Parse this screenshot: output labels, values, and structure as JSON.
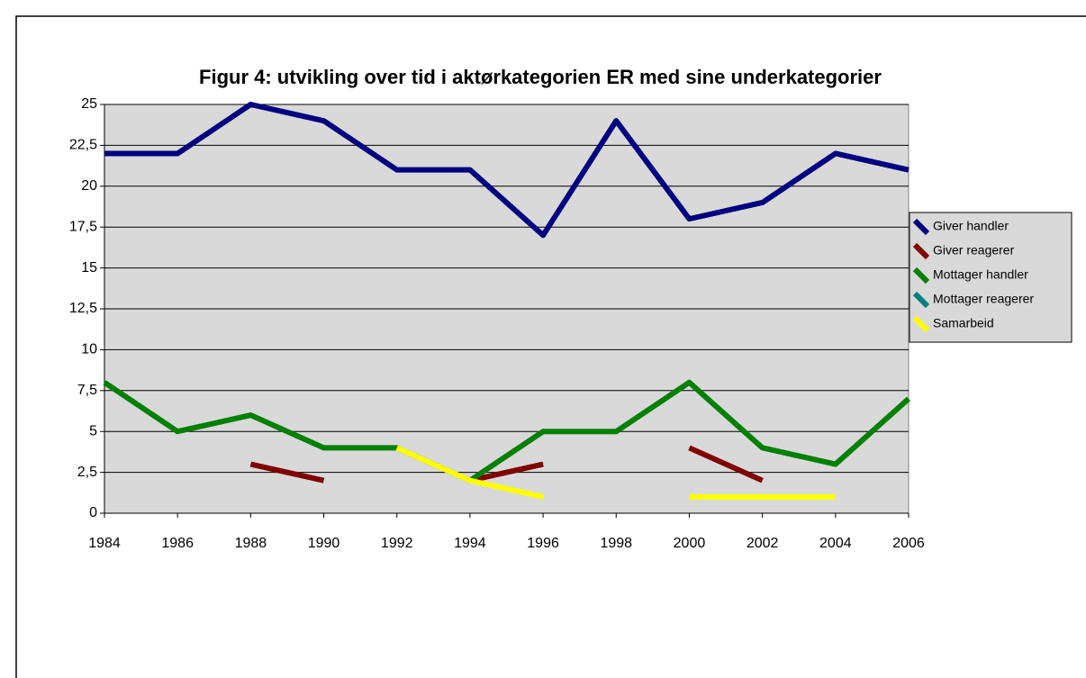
{
  "chart_data": {
    "type": "line",
    "title": "Figur 4: utvikling over tid i aktørkategorien ER med sine underkategorier",
    "categories": [
      "1984",
      "1986",
      "1988",
      "1990",
      "1992",
      "1994",
      "1996",
      "1998",
      "2000",
      "2002",
      "2004",
      "2006"
    ],
    "series": [
      {
        "name": "Giver handler",
        "color": "#000080",
        "values": [
          22,
          22,
          25,
          24,
          21,
          21,
          17,
          24,
          18,
          19,
          22,
          21
        ]
      },
      {
        "name": "Giver reagerer",
        "color": "#800000",
        "values": [
          null,
          null,
          3,
          2,
          null,
          2,
          3,
          null,
          4,
          2,
          null,
          null
        ]
      },
      {
        "name": "Mottager handler",
        "color": "#008000",
        "values": [
          8,
          5,
          6,
          4,
          4,
          2,
          5,
          5,
          8,
          4,
          3,
          7
        ]
      },
      {
        "name": "Mottager reagerer",
        "color": "#008080",
        "values": [
          null,
          null,
          null,
          null,
          null,
          null,
          null,
          null,
          null,
          null,
          null,
          null
        ]
      },
      {
        "name": "Samarbeid",
        "color": "#ffff00",
        "values": [
          null,
          null,
          null,
          null,
          4,
          2,
          1,
          null,
          1,
          1,
          1,
          null
        ]
      }
    ],
    "ylim": [
      0,
      25
    ],
    "yticks": [
      0,
      {
        "value": 2.5,
        "label": "2,5"
      },
      5,
      {
        "value": 7.5,
        "label": "7,5"
      },
      10,
      {
        "value": 12.5,
        "label": "12,5"
      },
      15,
      {
        "value": 17.5,
        "label": "17,5"
      },
      20,
      {
        "value": 22.5,
        "label": "22,5"
      },
      25
    ],
    "grid": true,
    "legend": "right"
  }
}
